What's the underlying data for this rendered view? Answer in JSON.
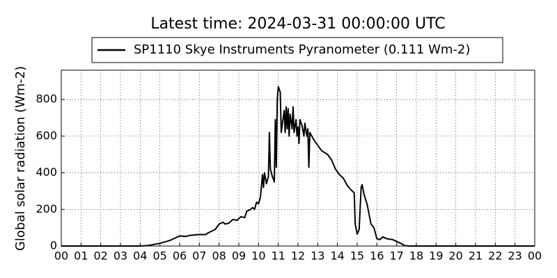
{
  "chart_data": {
    "type": "line",
    "title": "Latest time: 2024-03-31 00:00:00 UTC",
    "y_label": "Global solar radiation (Wm-2)",
    "grid": true,
    "legend": "upper center",
    "x": [
      0,
      4.0,
      4.3,
      4.5,
      5.0,
      5.5,
      5.8,
      6.0,
      6.3,
      6.5,
      7.0,
      7.3,
      7.5,
      7.8,
      8.0,
      8.2,
      8.3,
      8.5,
      8.7,
      8.9,
      9.0,
      9.1,
      9.3,
      9.4,
      9.6,
      9.7,
      9.8,
      9.9,
      10.0,
      10.1,
      10.2,
      10.25,
      10.3,
      10.4,
      10.5,
      10.55,
      10.6,
      10.7,
      10.8,
      10.85,
      10.9,
      10.95,
      11.0,
      11.1,
      11.15,
      11.25,
      11.3,
      11.35,
      11.4,
      11.45,
      11.5,
      11.55,
      11.6,
      11.7,
      11.75,
      11.8,
      11.9,
      11.95,
      12.0,
      12.05,
      12.1,
      12.2,
      12.3,
      12.35,
      12.45,
      12.5,
      12.55,
      12.6,
      12.8,
      13.0,
      13.2,
      13.5,
      13.7,
      13.9,
      14.1,
      14.3,
      14.5,
      14.7,
      14.85,
      14.9,
      15.0,
      15.1,
      15.2,
      15.25,
      15.35,
      15.5,
      15.7,
      15.85,
      16.0,
      16.15,
      16.3,
      16.5,
      16.8,
      17.0,
      17.2,
      17.4,
      17.6,
      24
    ],
    "series": [
      {
        "name": "SP1110 Skye Instruments Pyranometer (0.111 Wm-2)",
        "color": "#000000",
        "values": [
          0,
          0,
          2,
          5,
          15,
          30,
          45,
          55,
          52,
          58,
          63,
          62,
          75,
          90,
          120,
          130,
          120,
          125,
          145,
          140,
          150,
          160,
          155,
          190,
          200,
          210,
          200,
          240,
          230,
          270,
          390,
          320,
          400,
          340,
          380,
          620,
          420,
          380,
          350,
          690,
          430,
          800,
          870,
          840,
          620,
          700,
          740,
          620,
          760,
          640,
          750,
          600,
          720,
          640,
          760,
          620,
          690,
          600,
          650,
          560,
          690,
          660,
          600,
          670,
          600,
          640,
          430,
          620,
          580,
          550,
          520,
          500,
          470,
          420,
          390,
          370,
          330,
          305,
          290,
          120,
          65,
          90,
          320,
          335,
          280,
          230,
          120,
          100,
          40,
          35,
          50,
          40,
          35,
          25,
          15,
          3,
          0,
          0
        ]
      }
    ],
    "xlim": [
      0,
      24
    ],
    "xticks": [
      {
        "value": 0,
        "label": "00"
      },
      {
        "value": 1,
        "label": "01"
      },
      {
        "value": 2,
        "label": "02"
      },
      {
        "value": 3,
        "label": "03"
      },
      {
        "value": 4,
        "label": "04"
      },
      {
        "value": 5,
        "label": "05"
      },
      {
        "value": 6,
        "label": "06"
      },
      {
        "value": 7,
        "label": "07"
      },
      {
        "value": 8,
        "label": "08"
      },
      {
        "value": 9,
        "label": "09"
      },
      {
        "value": 10,
        "label": "10"
      },
      {
        "value": 11,
        "label": "11"
      },
      {
        "value": 12,
        "label": "12"
      },
      {
        "value": 13,
        "label": "13"
      },
      {
        "value": 14,
        "label": "14"
      },
      {
        "value": 15,
        "label": "15"
      },
      {
        "value": 16,
        "label": "16"
      },
      {
        "value": 17,
        "label": "17"
      },
      {
        "value": 18,
        "label": "18"
      },
      {
        "value": 19,
        "label": "19"
      },
      {
        "value": 20,
        "label": "20"
      },
      {
        "value": 21,
        "label": "21"
      },
      {
        "value": 22,
        "label": "22"
      },
      {
        "value": 23,
        "label": "23"
      },
      {
        "value": 24,
        "label": "00"
      }
    ],
    "ylim": [
      0,
      960
    ],
    "yticks": [
      0,
      200,
      400,
      600,
      800
    ]
  }
}
